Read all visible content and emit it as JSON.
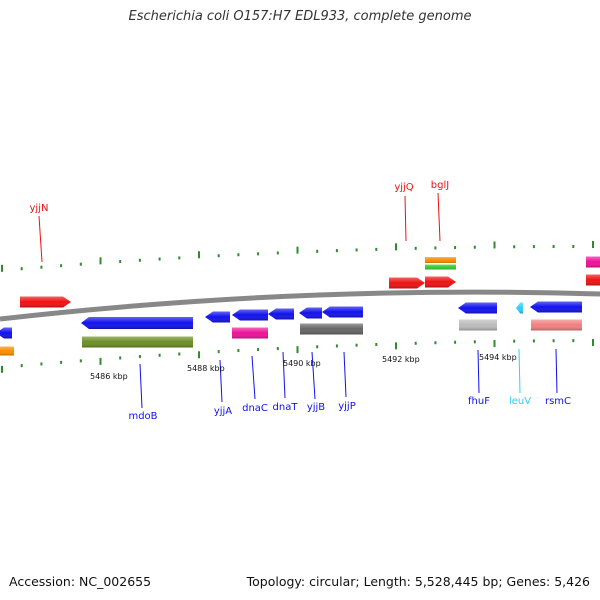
{
  "title": "Escherichia coli O157:H7 EDL933, complete genome",
  "footer": {
    "accession": "Accession: NC_002655",
    "summary": "Topology: circular; Length: 5,528,445 bp; Genes: 5,426"
  },
  "colors": {
    "red": "#ee1111",
    "blue": "#1111ee",
    "orange": "#ff8c00",
    "green": "#33cc33",
    "olive": "#6b8e23",
    "magenta": "#ee1199",
    "gray": "#bbbbbb",
    "darkgray": "#666666",
    "salmon": "#f08080",
    "cyan": "#33ccff",
    "tick": "#2e8b2e",
    "backbone": "#888888"
  },
  "scale_labels": [
    "5486 kbp",
    "5488 kbp",
    "5490 kbp",
    "5492 kbp",
    "5494 kbp"
  ],
  "gene_labels": [
    "yjjN",
    "yjjQ",
    "bglJ",
    "mdoB",
    "yjjA",
    "dnaC",
    "dnaT",
    "yjjB",
    "yjjP",
    "fhuF",
    "leuV",
    "rsmC"
  ]
}
